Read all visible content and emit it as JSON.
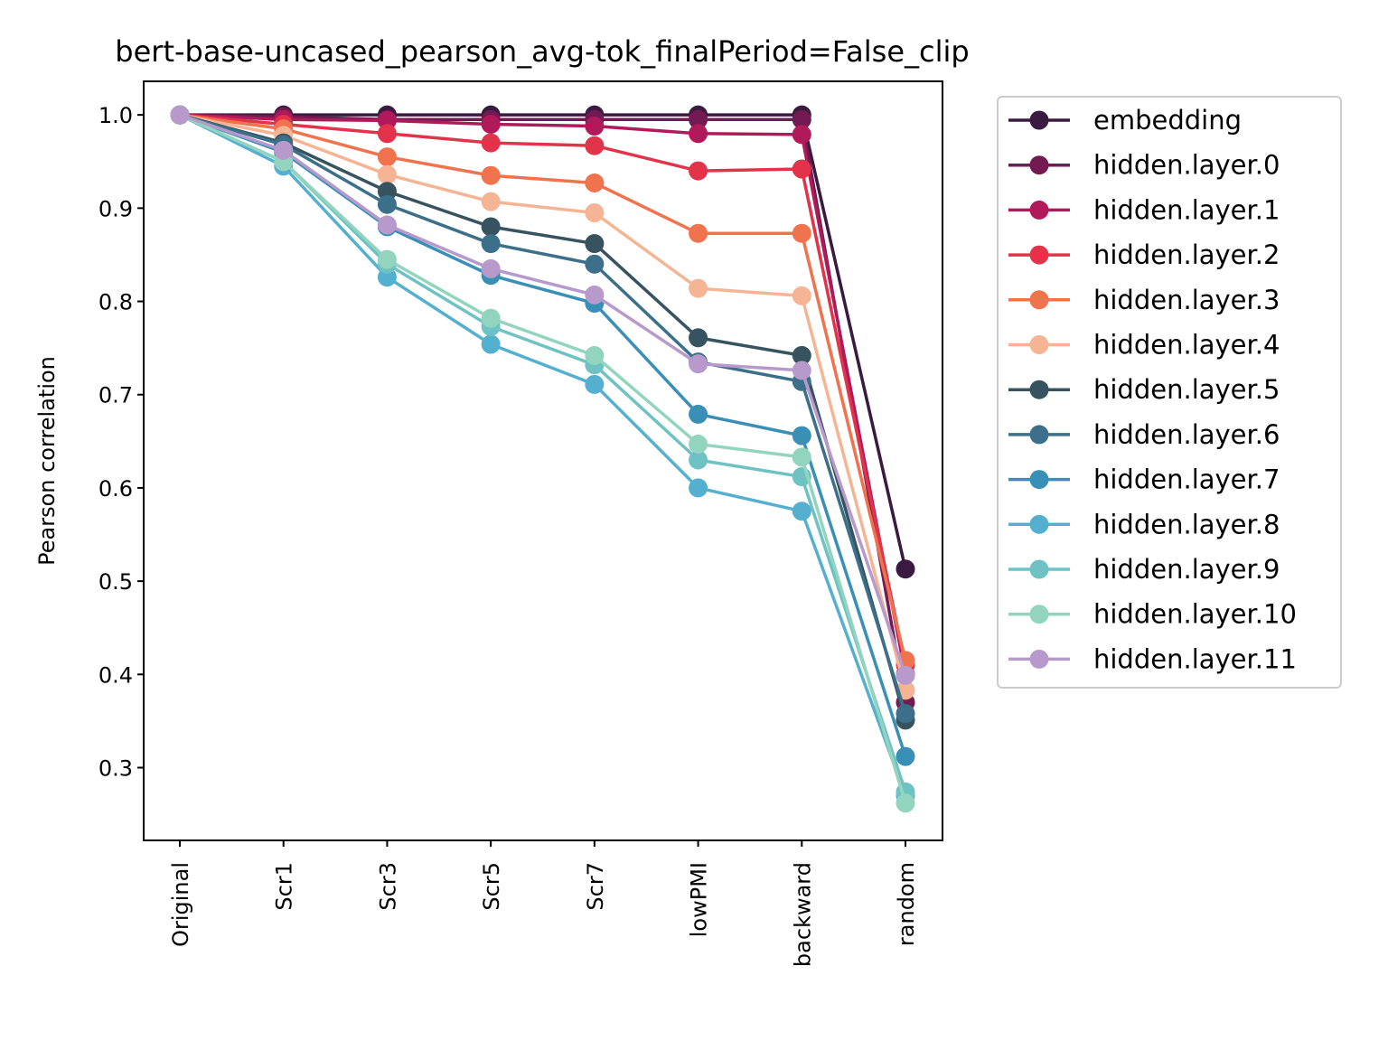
{
  "chart_data": {
    "type": "line",
    "title": "bert-base-uncased_pearson_avg-tok_finalPeriod=False_clip",
    "xlabel": "",
    "ylabel": "Pearson correlation",
    "categories": [
      "Original",
      "Scr1",
      "Scr3",
      "Scr5",
      "Scr7",
      "lowPMI",
      "backward",
      "random"
    ],
    "ylim": [
      0.222,
      1.036
    ],
    "yticks": [
      "0.3",
      "0.4",
      "0.5",
      "0.6",
      "0.7",
      "0.8",
      "0.9",
      "1.0"
    ],
    "legend_position": "outside-right",
    "grid": false,
    "marker": "circle",
    "series": [
      {
        "name": "embedding",
        "color": "#3a1a40",
        "values": [
          1.0,
          1.0,
          1.0,
          1.0,
          1.0,
          1.0,
          1.0,
          0.513
        ]
      },
      {
        "name": "hidden.layer.0",
        "color": "#721a51",
        "values": [
          1.0,
          0.998,
          0.995,
          0.995,
          0.995,
          0.995,
          0.995,
          0.37
        ]
      },
      {
        "name": "hidden.layer.1",
        "color": "#b11a5a",
        "values": [
          1.0,
          0.995,
          0.994,
          0.99,
          0.988,
          0.98,
          0.979,
          0.4
        ]
      },
      {
        "name": "hidden.layer.2",
        "color": "#e3334a",
        "values": [
          1.0,
          0.99,
          0.98,
          0.97,
          0.967,
          0.94,
          0.942,
          0.41
        ]
      },
      {
        "name": "hidden.layer.3",
        "color": "#f0734e",
        "values": [
          1.0,
          0.985,
          0.955,
          0.935,
          0.927,
          0.873,
          0.873,
          0.415
        ]
      },
      {
        "name": "hidden.layer.4",
        "color": "#f5b594",
        "values": [
          1.0,
          0.978,
          0.936,
          0.907,
          0.895,
          0.814,
          0.806,
          0.383
        ]
      },
      {
        "name": "hidden.layer.5",
        "color": "#37535f",
        "values": [
          1.0,
          0.97,
          0.918,
          0.88,
          0.862,
          0.761,
          0.742,
          0.351
        ]
      },
      {
        "name": "hidden.layer.6",
        "color": "#3b6f8a",
        "values": [
          1.0,
          0.968,
          0.904,
          0.862,
          0.84,
          0.735,
          0.714,
          0.358
        ]
      },
      {
        "name": "hidden.layer.7",
        "color": "#3a8fb7",
        "values": [
          1.0,
          0.96,
          0.88,
          0.828,
          0.798,
          0.679,
          0.656,
          0.312
        ]
      },
      {
        "name": "hidden.layer.8",
        "color": "#55b0cf",
        "values": [
          1.0,
          0.945,
          0.826,
          0.754,
          0.711,
          0.6,
          0.575,
          0.27
        ]
      },
      {
        "name": "hidden.layer.9",
        "color": "#6fc2c4",
        "values": [
          1.0,
          0.95,
          0.84,
          0.773,
          0.732,
          0.63,
          0.612,
          0.274
        ]
      },
      {
        "name": "hidden.layer.10",
        "color": "#93d4bf",
        "values": [
          1.0,
          0.95,
          0.845,
          0.782,
          0.742,
          0.647,
          0.633,
          0.262
        ]
      },
      {
        "name": "hidden.layer.11",
        "color": "#b79acb",
        "values": [
          1.0,
          0.962,
          0.882,
          0.835,
          0.807,
          0.733,
          0.726,
          0.399
        ]
      }
    ]
  }
}
